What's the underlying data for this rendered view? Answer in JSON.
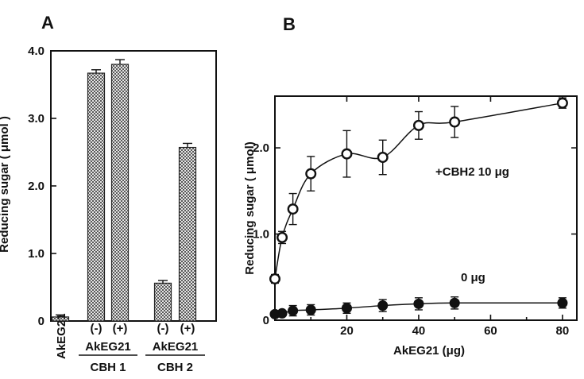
{
  "chart_data": [
    {
      "panel": "A",
      "type": "bar",
      "ylabel": "Reducing sugar ( μmol )",
      "ylim": [
        0,
        4.0
      ],
      "yticks": [
        "0",
        "1.0",
        "2.0",
        "3.0",
        "4.0"
      ],
      "categories": [
        "AkEG21",
        "(-)",
        "(+)",
        "(-)",
        "(+)"
      ],
      "values": [
        0.06,
        3.67,
        3.8,
        0.56,
        2.57
      ],
      "errors": [
        0.03,
        0.05,
        0.07,
        0.04,
        0.06
      ],
      "groups": [
        {
          "label": "AkEG21",
          "sublabel": "CBH 1",
          "categories": [
            1,
            2
          ]
        },
        {
          "label": "AkEG21",
          "sublabel": "CBH 2",
          "categories": [
            3,
            4
          ]
        }
      ],
      "grid": false
    },
    {
      "panel": "B",
      "type": "line",
      "xlabel": "AkEG21 (μg)",
      "ylabel": "Reducing sugar ( μmol)",
      "xlim": [
        0,
        84
      ],
      "ylim": [
        0,
        2.6
      ],
      "xticks": [
        "20",
        "40",
        "60",
        "80"
      ],
      "yticks": [
        "0",
        "1.0",
        "2.0"
      ],
      "series": [
        {
          "name": "+CBH2  10 μg",
          "marker": "open-circle",
          "x": [
            0,
            2,
            5,
            10,
            20,
            30,
            40,
            50,
            80
          ],
          "y": [
            0.48,
            0.96,
            1.29,
            1.7,
            1.93,
            1.89,
            2.26,
            2.3,
            2.52
          ],
          "err": [
            0.05,
            0.07,
            0.18,
            0.2,
            0.27,
            0.2,
            0.16,
            0.18,
            0.06
          ]
        },
        {
          "name": "0 μg",
          "marker": "filled-circle",
          "x": [
            0,
            2,
            5,
            10,
            20,
            30,
            40,
            50,
            80
          ],
          "y": [
            0.07,
            0.08,
            0.11,
            0.12,
            0.14,
            0.17,
            0.19,
            0.2,
            0.2
          ],
          "err": [
            0.02,
            0.03,
            0.06,
            0.06,
            0.06,
            0.07,
            0.07,
            0.07,
            0.06
          ]
        }
      ],
      "grid": false
    }
  ]
}
